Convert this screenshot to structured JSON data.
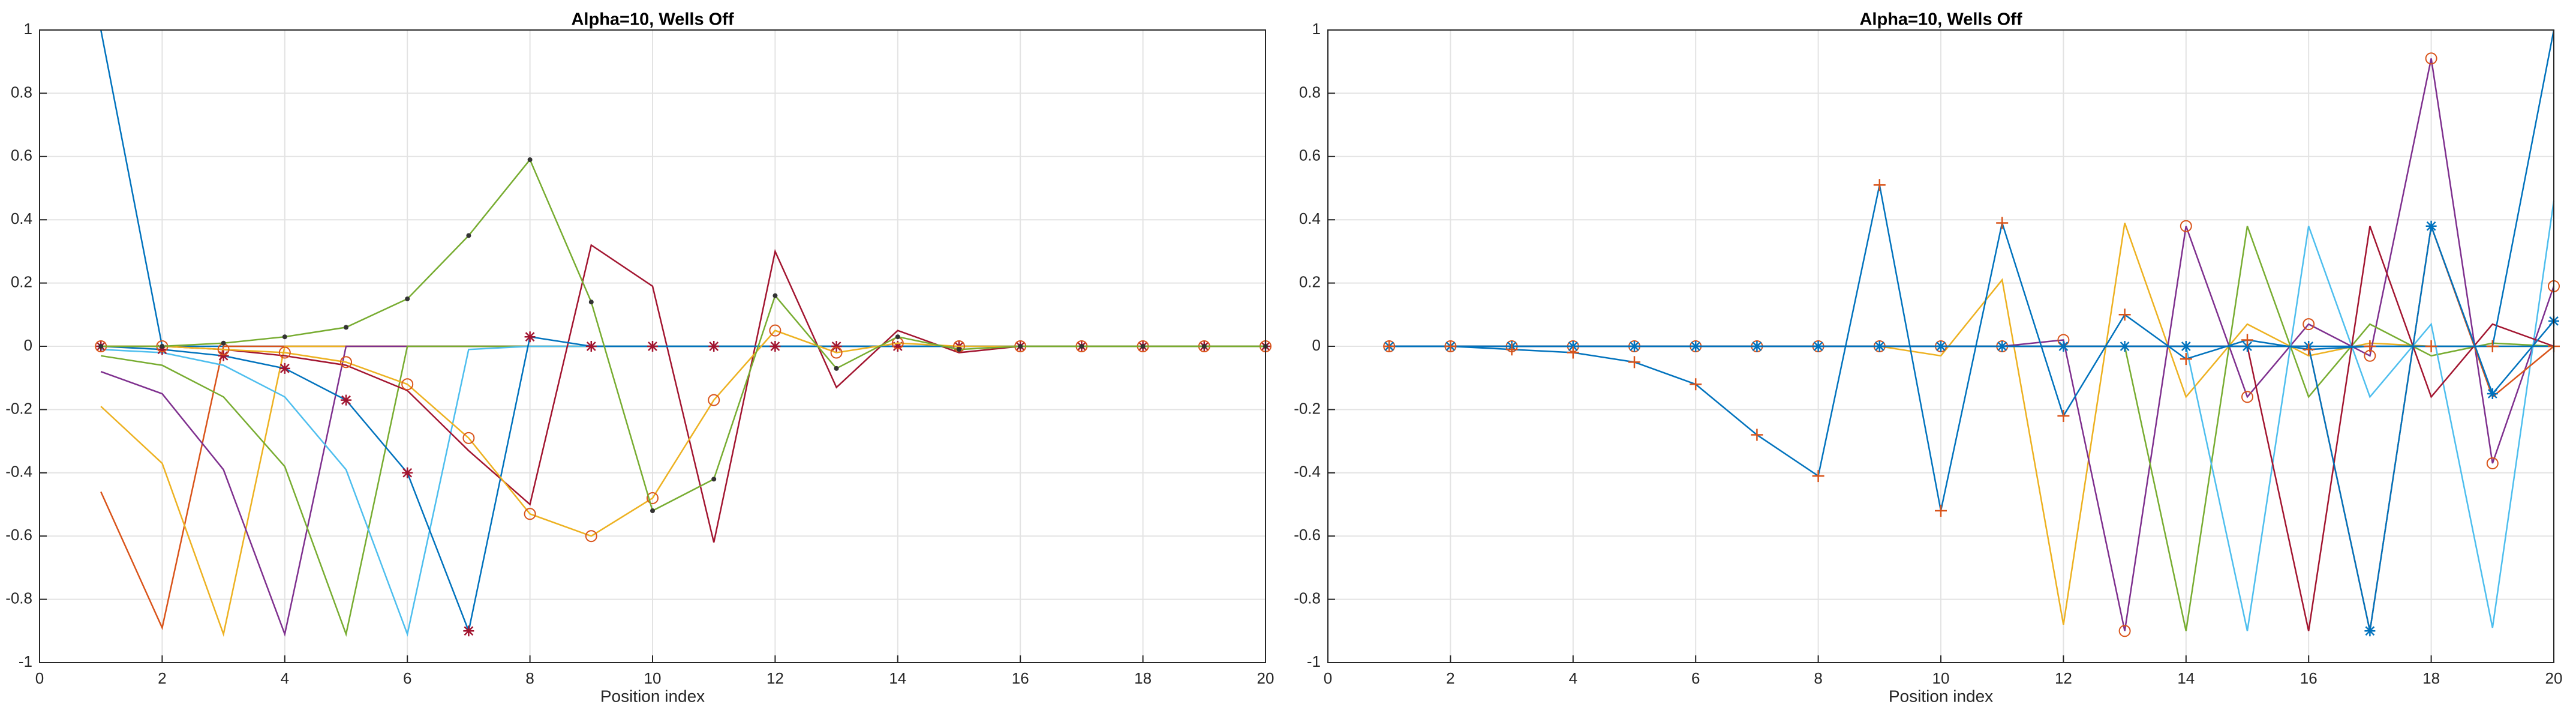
{
  "chart_data": [
    {
      "type": "line",
      "title": "Alpha=10, Wells Off",
      "xlabel": "Position index",
      "x": [
        1,
        2,
        3,
        4,
        5,
        6,
        7,
        8,
        9,
        10,
        11,
        12,
        13,
        14,
        15,
        16,
        17,
        18,
        19,
        20
      ],
      "xlim": [
        0,
        20
      ],
      "xticks": [
        0,
        2,
        4,
        6,
        8,
        10,
        12,
        14,
        16,
        18,
        20
      ],
      "ylim": [
        -1,
        1
      ],
      "yticks": [
        -1,
        -0.8,
        -0.6,
        -0.4,
        -0.2,
        0,
        0.2,
        0.4,
        0.6,
        0.8,
        1
      ],
      "grid": true,
      "series": [
        {
          "color": "#0072BD",
          "values": [
            1,
            0,
            0,
            0,
            0,
            0,
            0,
            0,
            0,
            0,
            0,
            0,
            0,
            0,
            0,
            0,
            0,
            0,
            0,
            0
          ]
        },
        {
          "color": "#D95319",
          "values": [
            -0.46,
            -0.89,
            0,
            0,
            0,
            0,
            0,
            0,
            0,
            0,
            0,
            0,
            0,
            0,
            0,
            0,
            0,
            0,
            0,
            0
          ]
        },
        {
          "color": "#EDB120",
          "values": [
            -0.19,
            -0.37,
            -0.91,
            0,
            0,
            0,
            0,
            0,
            0,
            0,
            0,
            0,
            0,
            0,
            0,
            0,
            0,
            0,
            0,
            0
          ]
        },
        {
          "color": "#7E2F8E",
          "values": [
            -0.08,
            -0.15,
            -0.39,
            -0.91,
            0,
            0,
            0,
            0,
            0,
            0,
            0,
            0,
            0,
            0,
            0,
            0,
            0,
            0,
            0,
            0
          ]
        },
        {
          "color": "#77AC30",
          "values": [
            -0.03,
            -0.06,
            -0.16,
            -0.38,
            -0.91,
            0,
            0,
            0,
            0,
            0,
            0,
            0,
            0,
            0,
            0,
            0,
            0,
            0,
            0,
            0
          ]
        },
        {
          "color": "#4DBEEE",
          "values": [
            -0.01,
            -0.02,
            -0.06,
            -0.16,
            -0.39,
            -0.91,
            -0.01,
            0,
            0,
            0,
            0,
            0,
            0,
            0,
            0,
            0,
            0,
            0,
            0,
            0
          ]
        },
        {
          "color": "#A2142F",
          "values": [
            0,
            0,
            -0.01,
            -0.03,
            -0.06,
            -0.14,
            -0.33,
            -0.5,
            0.32,
            0.19,
            -0.62,
            0.3,
            -0.13,
            0.05,
            -0.02,
            0,
            0,
            0,
            0,
            0
          ]
        },
        {
          "color": "#0072BD",
          "marker": "*",
          "marker_color": "#A2142F",
          "values": [
            0,
            -0.01,
            -0.03,
            -0.07,
            -0.17,
            -0.4,
            -0.9,
            0.03,
            0,
            0,
            0,
            0,
            0,
            0,
            0,
            0,
            0,
            0,
            0,
            0
          ]
        },
        {
          "color": "#EDB120",
          "marker": "o",
          "marker_color": "#D95319",
          "values": [
            0,
            0,
            -0.01,
            -0.02,
            -0.05,
            -0.12,
            -0.29,
            -0.53,
            -0.6,
            -0.48,
            -0.17,
            0.05,
            -0.02,
            0.01,
            0,
            0,
            0,
            0,
            0,
            0
          ]
        },
        {
          "color": "#77AC30",
          "marker": ".",
          "marker_color": "#333333",
          "values": [
            0,
            0,
            0.01,
            0.03,
            0.06,
            0.15,
            0.35,
            0.59,
            0.14,
            -0.52,
            -0.42,
            0.16,
            -0.07,
            0.03,
            -0.01,
            0,
            0,
            0,
            0,
            0
          ]
        }
      ]
    },
    {
      "type": "line",
      "title": "Alpha=10, Wells Off",
      "xlabel": "Position index",
      "x": [
        1,
        2,
        3,
        4,
        5,
        6,
        7,
        8,
        9,
        10,
        11,
        12,
        13,
        14,
        15,
        16,
        17,
        18,
        19,
        20
      ],
      "xlim": [
        0,
        20
      ],
      "xticks": [
        0,
        2,
        4,
        6,
        8,
        10,
        12,
        14,
        16,
        18,
        20
      ],
      "ylim": [
        -1,
        1
      ],
      "yticks": [
        -1,
        -0.8,
        -0.6,
        -0.4,
        -0.2,
        0,
        0.2,
        0.4,
        0.6,
        0.8,
        1
      ],
      "grid": true,
      "series": [
        {
          "color": "#EDB120",
          "values": [
            0,
            0,
            0,
            0,
            0,
            0,
            0,
            0,
            0,
            -0.03,
            0.21,
            -0.88,
            0.39,
            -0.16,
            0.07,
            -0.03,
            0.01,
            0,
            0,
            0
          ]
        },
        {
          "color": "#7E2F8E",
          "marker": "o",
          "marker_color": "#D95319",
          "values": [
            0,
            0,
            0,
            0,
            0,
            0,
            0,
            0,
            0,
            0,
            0,
            0.02,
            -0.9,
            0.38,
            -0.16,
            0.07,
            -0.03,
            0.91,
            -0.37,
            0.19
          ]
        },
        {
          "color": "#77AC30",
          "values": [
            0,
            0,
            0,
            0,
            0,
            0,
            0,
            0,
            0,
            0,
            0,
            0,
            0,
            -0.9,
            0.38,
            -0.16,
            0.07,
            -0.03,
            0.01,
            0
          ]
        },
        {
          "color": "#4DBEEE",
          "values": [
            0,
            0,
            0,
            0,
            0,
            0,
            0,
            0,
            0,
            0,
            0,
            0,
            0,
            0,
            -0.9,
            0.38,
            -0.16,
            0.07,
            -0.89,
            0.46
          ]
        },
        {
          "color": "#A2142F",
          "values": [
            0,
            0,
            0,
            0,
            0,
            0,
            0,
            0,
            0,
            0,
            0,
            0,
            0,
            0,
            0,
            -0.9,
            0.38,
            -0.16,
            0.07,
            0
          ]
        },
        {
          "color": "#D95319",
          "values": [
            0,
            0,
            0,
            0,
            0,
            0,
            0,
            0,
            0,
            0,
            0,
            0,
            0,
            0,
            0,
            0,
            -0.9,
            0.38,
            -0.16,
            0
          ]
        },
        {
          "color": "#0072BD",
          "marker": "*",
          "marker_color": "#0072BD",
          "values": [
            0,
            0,
            0,
            0,
            0,
            0,
            0,
            0,
            0,
            0,
            0,
            0,
            0,
            0,
            0,
            0,
            -0.9,
            0.38,
            -0.15,
            0.08
          ]
        },
        {
          "color": "#0072BD",
          "values": [
            0,
            0,
            0,
            0,
            0,
            0,
            0,
            0,
            0,
            0,
            0,
            0,
            0,
            0,
            0,
            0,
            0,
            0,
            0,
            1
          ]
        },
        {
          "color": "#0072BD",
          "marker": "+",
          "marker_color": "#D95319",
          "values": [
            0,
            0,
            -0.01,
            -0.02,
            -0.05,
            -0.12,
            -0.28,
            -0.41,
            0.51,
            -0.52,
            0.39,
            -0.22,
            0.1,
            -0.04,
            0.02,
            -0.01,
            0,
            0,
            0,
            0
          ]
        }
      ]
    }
  ]
}
